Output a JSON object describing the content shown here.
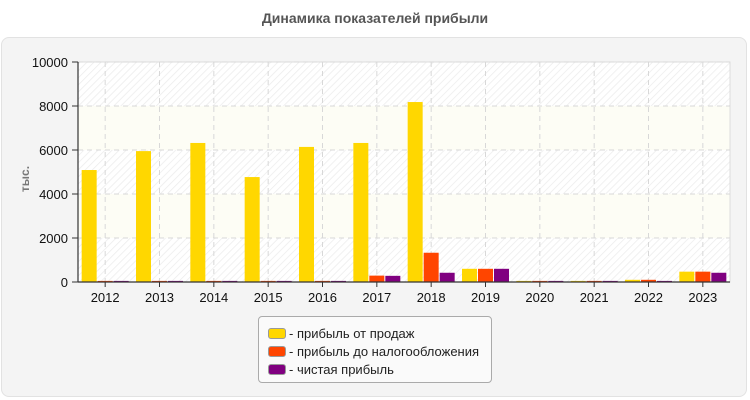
{
  "chart_data": {
    "type": "bar",
    "title": "Динамика показателей прибыли",
    "xlabel": "",
    "ylabel": "тыс.",
    "ylim": [
      0,
      10000
    ],
    "yticks": [
      0,
      2000,
      4000,
      6000,
      8000,
      10000
    ],
    "grid": true,
    "legend_position": "bottom-center",
    "categories": [
      "2012",
      "2013",
      "2014",
      "2015",
      "2016",
      "2017",
      "2018",
      "2019",
      "2020",
      "2021",
      "2022",
      "2023"
    ],
    "series": [
      {
        "name": "прибыль от продаж",
        "color": "#FFD700",
        "values": [
          5090,
          5950,
          6320,
          4770,
          6140,
          6320,
          8180,
          600,
          50,
          50,
          100,
          470
        ]
      },
      {
        "name": "прибыль до налогообложения",
        "color": "#FF4500",
        "values": [
          50,
          50,
          50,
          50,
          50,
          290,
          1330,
          600,
          50,
          50,
          100,
          470
        ]
      },
      {
        "name": "чистая прибыль",
        "color": "#800080",
        "values": [
          50,
          50,
          50,
          50,
          50,
          280,
          420,
          600,
          50,
          50,
          50,
          420
        ]
      }
    ]
  },
  "legend": {
    "items": [
      {
        "label": "- прибыль от продаж",
        "color": "#FFD700"
      },
      {
        "label": "- прибыль до налогообложения",
        "color": "#FF4500"
      },
      {
        "label": "- чистая прибыль",
        "color": "#800080"
      }
    ]
  }
}
